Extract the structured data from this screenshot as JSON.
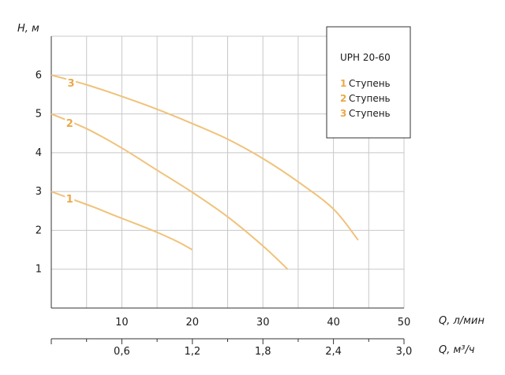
{
  "chart_data": {
    "type": "line",
    "ylabel": "H, м",
    "xlabel": "Q, л/мин",
    "x2label": "Q, м³/ч",
    "xlim": [
      0,
      50
    ],
    "ylim": [
      0,
      7
    ],
    "grid": true,
    "y_ticks": [
      "1",
      "2",
      "3",
      "4",
      "5",
      "6"
    ],
    "x_ticks": [
      "10",
      "20",
      "30",
      "40",
      "50"
    ],
    "x2_ticks": [
      "0,6",
      "1,2",
      "1,8",
      "2,4",
      "3,0"
    ],
    "legend": {
      "placement": "top-right",
      "title": "UPH 20-60",
      "entries": [
        {
          "num": "1",
          "text": "Ступень"
        },
        {
          "num": "2",
          "text": "Ступень"
        },
        {
          "num": "3",
          "text": "Ступень"
        }
      ]
    },
    "colors": {
      "curve": "#f0c27a",
      "label": "#e9a94a",
      "grid": "#c8c8c8",
      "axis": "#333333"
    },
    "series": [
      {
        "name": "1",
        "x": [
          0,
          3,
          6,
          9,
          12,
          15,
          18,
          20
        ],
        "y": [
          3.0,
          2.8,
          2.6,
          2.38,
          2.17,
          1.95,
          1.7,
          1.5
        ]
      },
      {
        "name": "2",
        "x": [
          0,
          5,
          10,
          15,
          20,
          25,
          30,
          33.5
        ],
        "y": [
          5.0,
          4.62,
          4.12,
          3.55,
          2.98,
          2.35,
          1.6,
          1.0
        ]
      },
      {
        "name": "3",
        "x": [
          0,
          5,
          10,
          15,
          20,
          25,
          30,
          35,
          40,
          43.5
        ],
        "y": [
          6.0,
          5.75,
          5.45,
          5.12,
          4.75,
          4.35,
          3.85,
          3.25,
          2.55,
          1.75
        ]
      }
    ]
  }
}
